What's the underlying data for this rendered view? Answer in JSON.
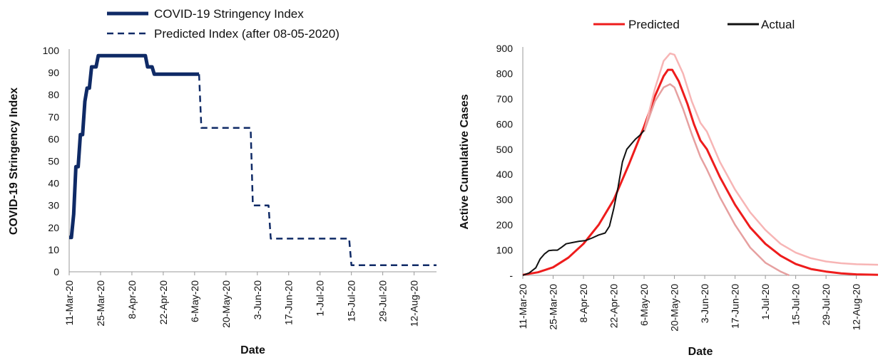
{
  "chart_data": [
    {
      "type": "line",
      "title": "",
      "xlabel": "Date",
      "ylabel": "COVID-19 Stringency Index",
      "ylim": [
        0,
        100
      ],
      "yticks": [
        0,
        10,
        20,
        30,
        40,
        50,
        60,
        70,
        80,
        90,
        100
      ],
      "xlim": [
        "2020-03-11",
        "2020-08-22"
      ],
      "xtick_labels": [
        "11-Mar-20",
        "25-Mar-20",
        "8-Apr-20",
        "22-Apr-20",
        "6-May-20",
        "20-May-20",
        "3-Jun-20",
        "17-Jun-20",
        "1-Jul-20",
        "15-Jul-20",
        "29-Jul-20",
        "12-Aug-20"
      ],
      "xtick_dates": [
        "2020-03-11",
        "2020-03-25",
        "2020-04-08",
        "2020-04-22",
        "2020-05-06",
        "2020-05-20",
        "2020-06-03",
        "2020-06-17",
        "2020-07-01",
        "2020-07-15",
        "2020-07-29",
        "2020-08-12"
      ],
      "grid": false,
      "legend_position": "top-left",
      "series": [
        {
          "name": "COVID-19 Stringency Index",
          "style": "solid",
          "color": "#0f2a66",
          "points": [
            [
              "2020-03-11",
              15.5
            ],
            [
              "2020-03-12",
              15.5
            ],
            [
              "2020-03-13",
              26
            ],
            [
              "2020-03-14",
              47.5
            ],
            [
              "2020-03-15",
              47.5
            ],
            [
              "2020-03-16",
              62
            ],
            [
              "2020-03-17",
              62
            ],
            [
              "2020-03-18",
              77
            ],
            [
              "2020-03-19",
              83
            ],
            [
              "2020-03-20",
              83
            ],
            [
              "2020-03-21",
              92.6
            ],
            [
              "2020-03-22",
              92.6
            ],
            [
              "2020-03-23",
              92.6
            ],
            [
              "2020-03-24",
              97.7
            ],
            [
              "2020-04-14",
              97.7
            ],
            [
              "2020-04-15",
              92.6
            ],
            [
              "2020-04-17",
              92.6
            ],
            [
              "2020-04-18",
              89.3
            ],
            [
              "2020-05-08",
              89.3
            ]
          ]
        },
        {
          "name": "Predicted Index (after 08-05-2020)",
          "style": "dashed",
          "color": "#0f2a66",
          "points": [
            [
              "2020-05-08",
              89.3
            ],
            [
              "2020-05-09",
              65
            ],
            [
              "2020-05-31",
              65
            ],
            [
              "2020-06-01",
              30
            ],
            [
              "2020-06-08",
              30
            ],
            [
              "2020-06-09",
              15
            ],
            [
              "2020-07-14",
              15
            ],
            [
              "2020-07-15",
              3
            ],
            [
              "2020-08-22",
              3
            ]
          ]
        }
      ]
    },
    {
      "type": "line",
      "title": "",
      "xlabel": "Date",
      "ylabel": "Active Cumulative Cases",
      "ylim": [
        0,
        900
      ],
      "yticks": [
        0,
        100,
        200,
        300,
        400,
        500,
        600,
        700,
        800,
        900
      ],
      "ytick_labels": [
        "-",
        "100",
        "200",
        "300",
        "400",
        "500",
        "600",
        "700",
        "800",
        "900"
      ],
      "xlim": [
        "2020-03-11",
        "2020-08-22"
      ],
      "xtick_labels": [
        "11-Mar-20",
        "25-Mar-20",
        "8-Apr-20",
        "22-Apr-20",
        "6-May-20",
        "20-May-20",
        "3-Jun-20",
        "17-Jun-20",
        "1-Jul-20",
        "15-Jul-20",
        "29-Jul-20",
        "12-Aug-20"
      ],
      "xtick_dates": [
        "2020-03-11",
        "2020-03-25",
        "2020-04-08",
        "2020-04-22",
        "2020-05-06",
        "2020-05-20",
        "2020-06-03",
        "2020-06-17",
        "2020-07-01",
        "2020-07-15",
        "2020-07-29",
        "2020-08-12"
      ],
      "grid": false,
      "legend_position": "top",
      "series": [
        {
          "name": "Predicted",
          "color": "#ee1c1c",
          "points": [
            [
              "2020-03-11",
              2
            ],
            [
              "2020-03-18",
              12
            ],
            [
              "2020-03-25",
              32
            ],
            [
              "2020-04-01",
              70
            ],
            [
              "2020-04-08",
              125
            ],
            [
              "2020-04-15",
              200
            ],
            [
              "2020-04-22",
              300
            ],
            [
              "2020-04-29",
              440
            ],
            [
              "2020-05-06",
              590
            ],
            [
              "2020-05-11",
              710
            ],
            [
              "2020-05-15",
              790
            ],
            [
              "2020-05-17",
              815
            ],
            [
              "2020-05-19",
              815
            ],
            [
              "2020-05-22",
              770
            ],
            [
              "2020-05-26",
              680
            ],
            [
              "2020-05-29",
              600
            ],
            [
              "2020-06-01",
              535
            ],
            [
              "2020-06-04",
              500
            ],
            [
              "2020-06-10",
              390
            ],
            [
              "2020-06-17",
              280
            ],
            [
              "2020-06-24",
              190
            ],
            [
              "2020-07-01",
              125
            ],
            [
              "2020-07-08",
              78
            ],
            [
              "2020-07-15",
              45
            ],
            [
              "2020-07-22",
              25
            ],
            [
              "2020-07-29",
              15
            ],
            [
              "2020-08-05",
              8
            ],
            [
              "2020-08-12",
              4
            ],
            [
              "2020-08-22",
              2
            ]
          ]
        },
        {
          "name": "Upper bound",
          "color": "#f7b5b5",
          "points": [
            [
              "2020-05-06",
              570
            ],
            [
              "2020-05-11",
              740
            ],
            [
              "2020-05-15",
              850
            ],
            [
              "2020-05-18",
              880
            ],
            [
              "2020-05-20",
              875
            ],
            [
              "2020-05-24",
              800
            ],
            [
              "2020-05-28",
              690
            ],
            [
              "2020-06-01",
              605
            ],
            [
              "2020-06-04",
              570
            ],
            [
              "2020-06-10",
              450
            ],
            [
              "2020-06-17",
              340
            ],
            [
              "2020-06-24",
              250
            ],
            [
              "2020-07-01",
              180
            ],
            [
              "2020-07-08",
              125
            ],
            [
              "2020-07-15",
              90
            ],
            [
              "2020-07-22",
              68
            ],
            [
              "2020-07-29",
              55
            ],
            [
              "2020-08-05",
              48
            ],
            [
              "2020-08-12",
              44
            ],
            [
              "2020-08-22",
              42
            ]
          ]
        },
        {
          "name": "Lower bound",
          "color": "#e6a0a0",
          "points": [
            [
              "2020-05-06",
              570
            ],
            [
              "2020-05-11",
              690
            ],
            [
              "2020-05-15",
              745
            ],
            [
              "2020-05-18",
              758
            ],
            [
              "2020-05-20",
              745
            ],
            [
              "2020-05-24",
              660
            ],
            [
              "2020-05-28",
              560
            ],
            [
              "2020-06-01",
              470
            ],
            [
              "2020-06-04",
              420
            ],
            [
              "2020-06-10",
              310
            ],
            [
              "2020-06-17",
              200
            ],
            [
              "2020-06-24",
              110
            ],
            [
              "2020-07-01",
              50
            ],
            [
              "2020-07-08",
              15
            ],
            [
              "2020-07-12",
              0
            ]
          ]
        },
        {
          "name": "Actual",
          "color": "#111111",
          "points": [
            [
              "2020-03-11",
              0
            ],
            [
              "2020-03-14",
              10
            ],
            [
              "2020-03-17",
              30
            ],
            [
              "2020-03-19",
              65
            ],
            [
              "2020-03-21",
              85
            ],
            [
              "2020-03-23",
              98
            ],
            [
              "2020-03-25",
              100
            ],
            [
              "2020-03-27",
              100
            ],
            [
              "2020-03-29",
              112
            ],
            [
              "2020-03-31",
              125
            ],
            [
              "2020-04-03",
              130
            ],
            [
              "2020-04-06",
              135
            ],
            [
              "2020-04-09",
              138
            ],
            [
              "2020-04-12",
              148
            ],
            [
              "2020-04-15",
              160
            ],
            [
              "2020-04-18",
              168
            ],
            [
              "2020-04-20",
              195
            ],
            [
              "2020-04-22",
              265
            ],
            [
              "2020-04-24",
              350
            ],
            [
              "2020-04-26",
              450
            ],
            [
              "2020-04-28",
              500
            ],
            [
              "2020-04-30",
              520
            ],
            [
              "2020-05-02",
              540
            ],
            [
              "2020-05-04",
              555
            ],
            [
              "2020-05-06",
              575
            ]
          ]
        }
      ],
      "legend_entries": [
        "Predicted",
        "Actual"
      ]
    }
  ]
}
